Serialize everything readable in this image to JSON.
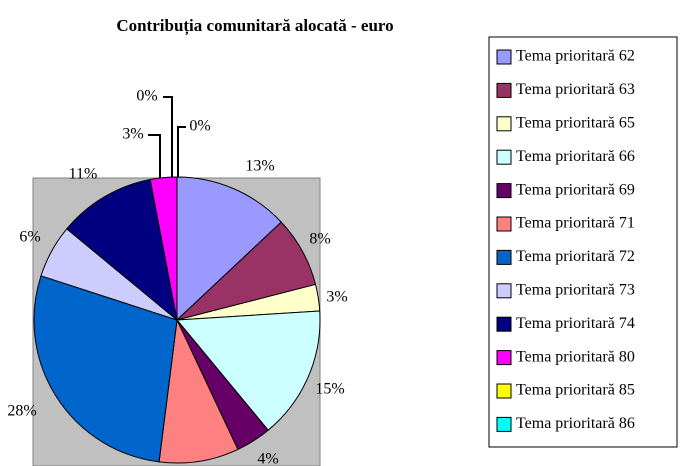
{
  "chart_data": {
    "type": "pie",
    "title": "Contribuția comunitară alocată - euro",
    "categories": [
      "Tema prioritară 62",
      "Tema prioritară 63",
      "Tema prioritară 65",
      "Tema prioritară 66",
      "Tema prioritară 69",
      "Tema prioritară 71",
      "Tema prioritară 72",
      "Tema prioritară 73",
      "Tema prioritară 74",
      "Tema prioritară 80",
      "Tema prioritară 85",
      "Tema prioritară 86"
    ],
    "values": [
      13,
      8,
      3,
      15,
      4,
      9,
      28,
      6,
      11,
      3,
      0,
      0
    ],
    "value_labels": [
      "13%",
      "8%",
      "3%",
      "15%",
      "4%",
      null,
      "28%",
      "6%",
      "11%",
      "3%",
      "0%",
      "0%"
    ],
    "colors": [
      "#9999ff",
      "#993366",
      "#ffffcc",
      "#ccffff",
      "#660066",
      "#ff8080",
      "#0066cc",
      "#ccccff",
      "#000080",
      "#ff00ff",
      "#ffff00",
      "#00ffff"
    ],
    "legend": "right"
  }
}
